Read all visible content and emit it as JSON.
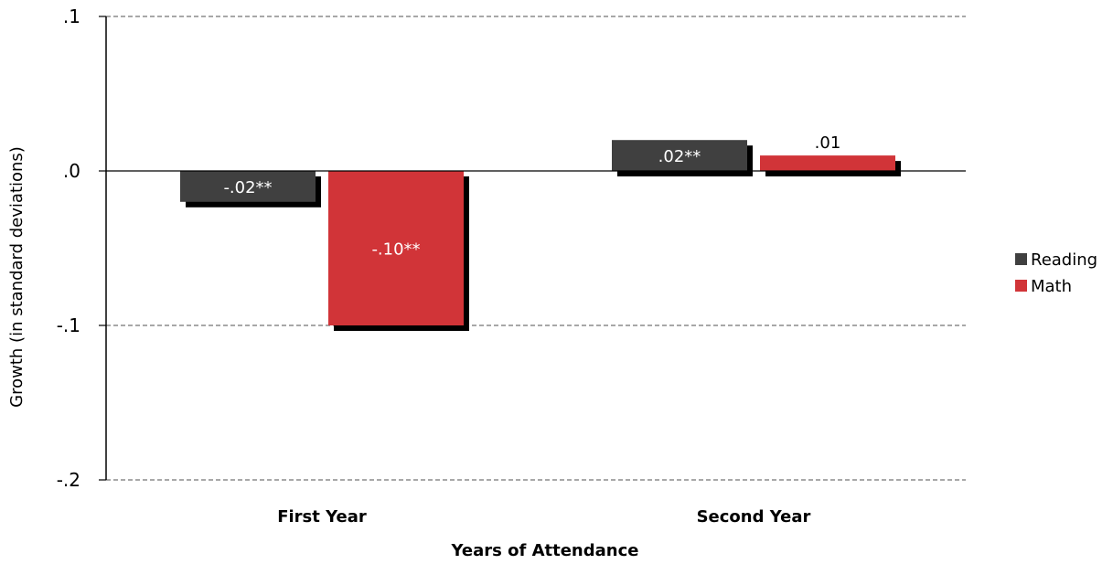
{
  "chart_data": {
    "type": "bar",
    "title": "",
    "xlabel": "Years of Attendance",
    "ylabel": "Growth (in standard deviations)",
    "categories": [
      "First Year",
      "Second Year"
    ],
    "ylim": [
      -0.2,
      0.1
    ],
    "yticks": [
      {
        "value": 0.1,
        "label": ".1"
      },
      {
        "value": 0.0,
        "label": ".0"
      },
      {
        "value": -0.1,
        "label": "-.1"
      },
      {
        "value": -0.2,
        "label": "-.2"
      }
    ],
    "grid": "dashed horizontal",
    "legend_position": "right",
    "series": [
      {
        "name": "Reading",
        "color": "#404040",
        "values": [
          -0.02,
          0.02
        ],
        "labels": [
          "-.02**",
          ".02**"
        ]
      },
      {
        "name": "Math",
        "color": "#d13438",
        "values": [
          -0.1,
          0.01
        ],
        "labels": [
          "-.10**",
          ".01"
        ]
      }
    ]
  }
}
